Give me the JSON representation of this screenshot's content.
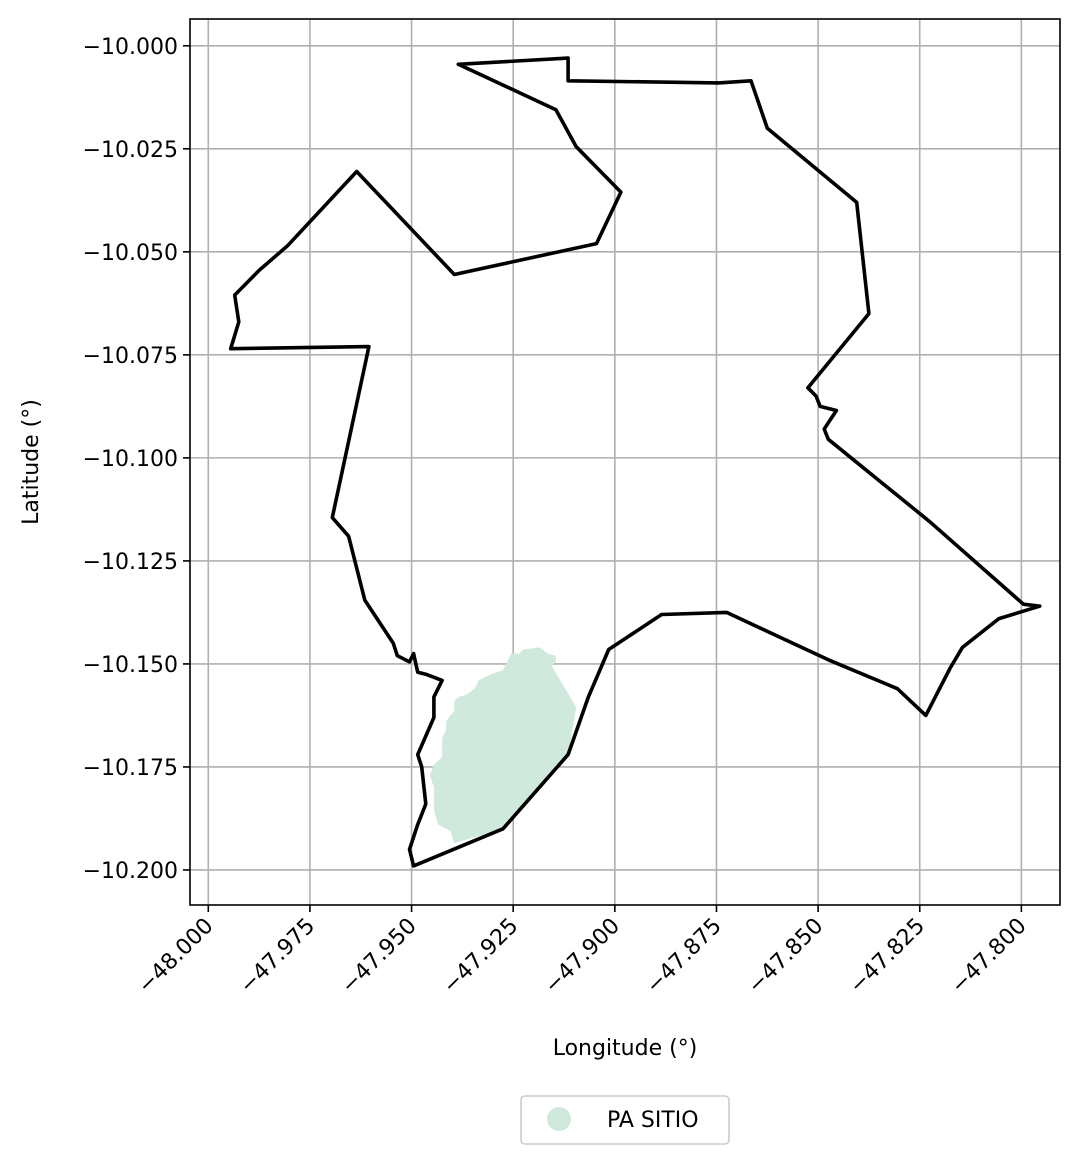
{
  "chart_data": {
    "type": "map",
    "xlabel": "Longitude (°)",
    "ylabel": "Latitude (°)",
    "xlim": [
      -48.0045,
      -47.7905
    ],
    "ylim": [
      -10.2085,
      -9.9935
    ],
    "grid": true,
    "x_ticks": [
      -48.0,
      -47.975,
      -47.95,
      -47.925,
      -47.9,
      -47.875,
      -47.85,
      -47.825,
      -47.8
    ],
    "x_tick_labels": [
      "−48.000",
      "−47.975",
      "−47.950",
      "−47.925",
      "−47.900",
      "−47.875",
      "−47.850",
      "−47.825",
      "−47.800"
    ],
    "y_ticks": [
      -10.0,
      -10.025,
      -10.05,
      -10.075,
      -10.1,
      -10.125,
      -10.15,
      -10.175,
      -10.2
    ],
    "y_tick_labels": [
      "−10.000",
      "−10.025",
      "−10.050",
      "−10.075",
      "−10.100",
      "−10.125",
      "−10.150",
      "−10.175",
      "−10.200"
    ],
    "legend": {
      "placement": "bottom-center",
      "entries": [
        {
          "label": "PA SITIO",
          "color": "#cfeadd"
        }
      ]
    },
    "boundary": {
      "color": "#000000",
      "points": [
        [
          -47.9385,
          -10.0045
        ],
        [
          -47.9115,
          -10.003
        ],
        [
          -47.9115,
          -10.0085
        ],
        [
          -47.8745,
          -10.009
        ],
        [
          -47.8665,
          -10.0085
        ],
        [
          -47.8625,
          -10.02
        ],
        [
          -47.8405,
          -10.038
        ],
        [
          -47.8375,
          -10.065
        ],
        [
          -47.8525,
          -10.083
        ],
        [
          -47.8505,
          -10.085
        ],
        [
          -47.8495,
          -10.0875
        ],
        [
          -47.8455,
          -10.0885
        ],
        [
          -47.8485,
          -10.093
        ],
        [
          -47.8475,
          -10.0955
        ],
        [
          -47.8225,
          -10.1155
        ],
        [
          -47.7995,
          -10.1355
        ],
        [
          -47.7955,
          -10.136
        ],
        [
          -47.8055,
          -10.139
        ],
        [
          -47.8145,
          -10.146
        ],
        [
          -47.8175,
          -10.151
        ],
        [
          -47.8235,
          -10.1625
        ],
        [
          -47.8305,
          -10.156
        ],
        [
          -47.8475,
          -10.149
        ],
        [
          -47.8725,
          -10.1375
        ],
        [
          -47.8885,
          -10.138
        ],
        [
          -47.9015,
          -10.1465
        ],
        [
          -47.9065,
          -10.158
        ],
        [
          -47.9115,
          -10.172
        ],
        [
          -47.9275,
          -10.19
        ],
        [
          -47.9495,
          -10.199
        ],
        [
          -47.9505,
          -10.195
        ],
        [
          -47.9485,
          -10.189
        ],
        [
          -47.9465,
          -10.184
        ],
        [
          -47.9475,
          -10.175
        ],
        [
          -47.9485,
          -10.172
        ],
        [
          -47.9445,
          -10.163
        ],
        [
          -47.9445,
          -10.158
        ],
        [
          -47.9425,
          -10.154
        ],
        [
          -47.9465,
          -10.1525
        ],
        [
          -47.9485,
          -10.152
        ],
        [
          -47.9495,
          -10.1475
        ],
        [
          -47.9505,
          -10.1495
        ],
        [
          -47.9535,
          -10.148
        ],
        [
          -47.9545,
          -10.145
        ],
        [
          -47.9615,
          -10.1345
        ],
        [
          -47.9655,
          -10.119
        ],
        [
          -47.9695,
          -10.1145
        ],
        [
          -47.9605,
          -10.073
        ],
        [
          -47.9945,
          -10.0735
        ],
        [
          -47.9925,
          -10.067
        ],
        [
          -47.9935,
          -10.0605
        ],
        [
          -47.9875,
          -10.0545
        ],
        [
          -47.9805,
          -10.0485
        ],
        [
          -47.9635,
          -10.0305
        ],
        [
          -47.9395,
          -10.0555
        ],
        [
          -47.9045,
          -10.048
        ],
        [
          -47.8985,
          -10.0355
        ],
        [
          -47.9095,
          -10.0245
        ],
        [
          -47.9145,
          -10.0155
        ],
        [
          -47.9385,
          -10.0045
        ]
      ]
    },
    "area": {
      "name": "PA SITIO",
      "color": "#cfeadd",
      "points": [
        [
          -47.9255,
          -10.1475
        ],
        [
          -47.9235,
          -10.1475
        ],
        [
          -47.9225,
          -10.1465
        ],
        [
          -47.9185,
          -10.146
        ],
        [
          -47.9165,
          -10.1475
        ],
        [
          -47.9145,
          -10.148
        ],
        [
          -47.9145,
          -10.1495
        ],
        [
          -47.9155,
          -10.1505
        ],
        [
          -47.9095,
          -10.1605
        ],
        [
          -47.9115,
          -10.172
        ],
        [
          -47.9275,
          -10.19
        ],
        [
          -47.9395,
          -10.1935
        ],
        [
          -47.9405,
          -10.1905
        ],
        [
          -47.9435,
          -10.189
        ],
        [
          -47.9445,
          -10.1855
        ],
        [
          -47.9445,
          -10.18
        ],
        [
          -47.9455,
          -10.177
        ],
        [
          -47.9445,
          -10.1745
        ],
        [
          -47.9425,
          -10.1725
        ],
        [
          -47.9425,
          -10.168
        ],
        [
          -47.9415,
          -10.166
        ],
        [
          -47.9415,
          -10.164
        ],
        [
          -47.9405,
          -10.1625
        ],
        [
          -47.9395,
          -10.1615
        ],
        [
          -47.9395,
          -10.159
        ],
        [
          -47.9385,
          -10.158
        ],
        [
          -47.9365,
          -10.1575
        ],
        [
          -47.9345,
          -10.156
        ],
        [
          -47.9335,
          -10.154
        ],
        [
          -47.9305,
          -10.1525
        ],
        [
          -47.9275,
          -10.1515
        ],
        [
          -47.9265,
          -10.1495
        ],
        [
          -47.9255,
          -10.1475
        ]
      ]
    }
  }
}
